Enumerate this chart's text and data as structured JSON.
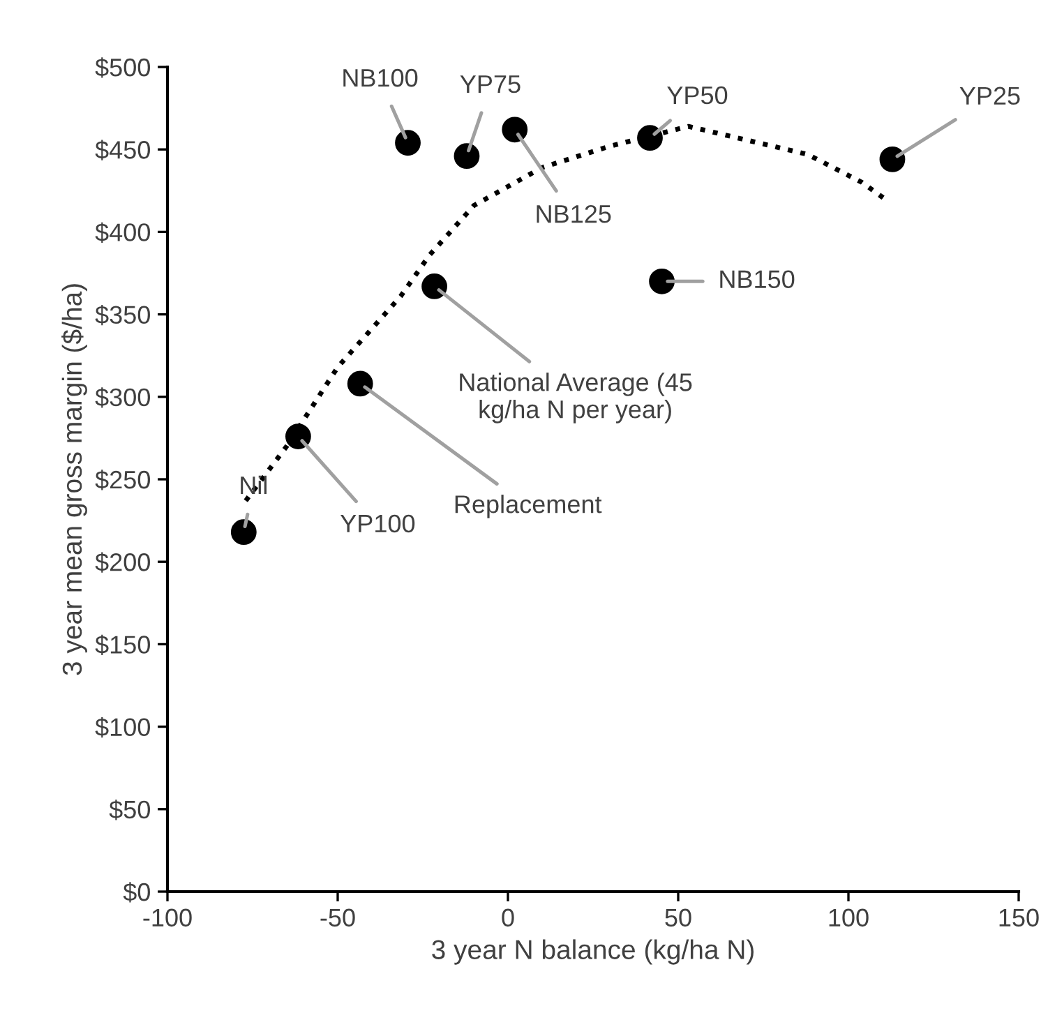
{
  "chart_data": {
    "type": "scatter",
    "xlabel": "3 year N balance (kg/ha N)",
    "ylabel": "3 year mean gross margin ($/ha)",
    "xlim": [
      -100,
      150
    ],
    "xticks": [
      -100,
      -50,
      0,
      50,
      100,
      150
    ],
    "ylim": [
      0,
      500
    ],
    "yticks": [
      {
        "value": 0,
        "label": "$0"
      },
      {
        "value": 50,
        "label": "$50"
      },
      {
        "value": 100,
        "label": "$100"
      },
      {
        "value": 150,
        "label": "$150"
      },
      {
        "value": 200,
        "label": "$200"
      },
      {
        "value": 250,
        "label": "$250"
      },
      {
        "value": 300,
        "label": "$300"
      },
      {
        "value": 350,
        "label": "$350"
      },
      {
        "value": 400,
        "label": "$400"
      },
      {
        "value": 450,
        "label": "$450"
      },
      {
        "value": 500,
        "label": "$500"
      }
    ],
    "grid": false,
    "legend": false,
    "series": [
      {
        "color": "#000000",
        "marker": "circle",
        "x": [
          -77.6,
          -61.6,
          -43.4,
          -21.6,
          -29.4,
          -12.1,
          2.0,
          41.7,
          45.2,
          112.9
        ],
        "values": [
          218,
          276,
          308,
          367,
          454,
          446,
          462,
          457,
          370,
          444
        ]
      },
      {
        "type": "line",
        "color": "#000000",
        "line_style": "dotted",
        "marker": "none",
        "x": [
          -77,
          -65,
          -50,
          -31.5,
          -23,
          -10,
          10,
          30,
          53,
          88,
          104,
          112
        ],
        "values": [
          237,
          270,
          318,
          361,
          386,
          416,
          439,
          452,
          464,
          447,
          430,
          418
        ]
      }
    ],
    "annotations": [
      {
        "text": "Nil",
        "x": -77.6,
        "y": 218
      },
      {
        "text": "YP100",
        "x": -61.6,
        "y": 276
      },
      {
        "text": "Replacement",
        "x": -43.4,
        "y": 308
      },
      {
        "text": "National Average (45\nkg/ha N per year)",
        "x": -21.6,
        "y": 367
      },
      {
        "text": "NB100",
        "x": -29.4,
        "y": 454
      },
      {
        "text": "YP75",
        "x": -12.1,
        "y": 446
      },
      {
        "text": "NB125",
        "x": 2.0,
        "y": 462
      },
      {
        "text": "YP50",
        "x": 41.7,
        "y": 457
      },
      {
        "text": "NB150",
        "x": 45.2,
        "y": 370
      },
      {
        "text": "YP25",
        "x": 112.9,
        "y": 444
      }
    ]
  }
}
